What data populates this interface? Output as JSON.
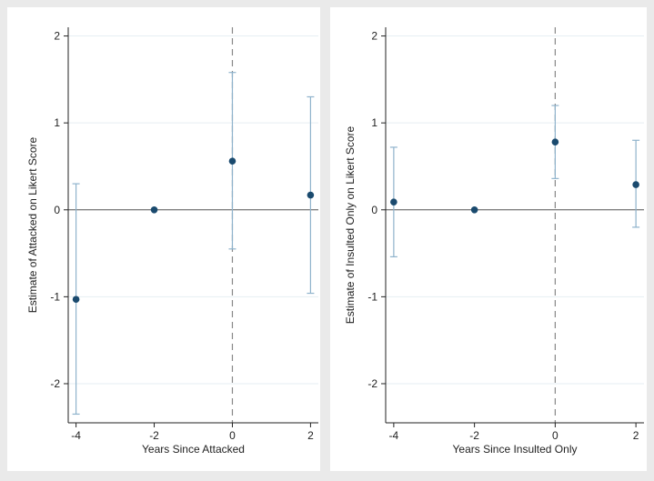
{
  "chart_data": [
    {
      "type": "scatter",
      "xlabel": "Years Since Attacked",
      "ylabel": "Estimate of Attacked on Likert Score",
      "x_ticks": [
        -4,
        -2,
        0,
        2
      ],
      "y_ticks": [
        -2,
        -1,
        0,
        1,
        2
      ],
      "xlim": [
        -4.2,
        2.2
      ],
      "ylim": [
        -2.45,
        2.1
      ],
      "reference_line_y": 0,
      "vertical_dashed_line_x": 0,
      "grid": true,
      "points": [
        {
          "x": -4,
          "y": -1.03,
          "ci_low": -2.35,
          "ci_high": 0.3
        },
        {
          "x": -2,
          "y": 0.0,
          "ci_low": null,
          "ci_high": null
        },
        {
          "x": 0,
          "y": 0.56,
          "ci_low": -0.45,
          "ci_high": 1.58
        },
        {
          "x": 2,
          "y": 0.17,
          "ci_low": -0.96,
          "ci_high": 1.3
        }
      ]
    },
    {
      "type": "scatter",
      "xlabel": "Years Since Insulted Only",
      "ylabel": "Estimate of Insulted Only on Likert Score",
      "x_ticks": [
        -4,
        -2,
        0,
        2
      ],
      "y_ticks": [
        -2,
        -1,
        0,
        1,
        2
      ],
      "xlim": [
        -4.2,
        2.2
      ],
      "ylim": [
        -2.45,
        2.1
      ],
      "reference_line_y": 0,
      "vertical_dashed_line_x": 0,
      "grid": true,
      "points": [
        {
          "x": -4,
          "y": 0.09,
          "ci_low": -0.54,
          "ci_high": 0.72
        },
        {
          "x": -2,
          "y": 0.0,
          "ci_low": null,
          "ci_high": null
        },
        {
          "x": 0,
          "y": 0.78,
          "ci_low": 0.36,
          "ci_high": 1.2
        },
        {
          "x": 2,
          "y": 0.29,
          "ci_low": -0.2,
          "ci_high": 0.8
        }
      ]
    }
  ],
  "colors": {
    "background": "#eaeaea",
    "plot_area": "#ffffff",
    "point": "#1a4a6e",
    "ci": "#8fb3cc",
    "grid": "#e6eef3",
    "zero_line": "#555555",
    "dashed_line": "#888888"
  }
}
